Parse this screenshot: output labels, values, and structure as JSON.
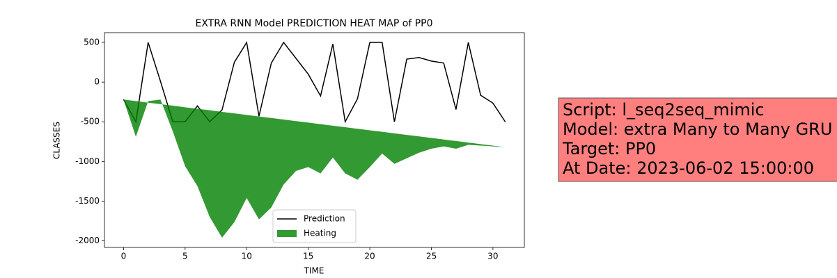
{
  "chart_data": {
    "type": "line",
    "title": "EXTRA RNN Model PREDICTION HEAT MAP of PP0",
    "x_label": "TIME",
    "y_label": "CLASSES",
    "x": [
      0,
      1,
      2,
      3,
      4,
      5,
      6,
      7,
      8,
      9,
      10,
      11,
      12,
      13,
      14,
      15,
      16,
      17,
      18,
      19,
      20,
      21,
      22,
      23,
      24,
      25,
      26,
      27,
      28,
      29,
      30,
      31
    ],
    "series": [
      {
        "name": "Prediction",
        "color": "#000000",
        "values": [
          -219,
          -500,
          500,
          10,
          -500,
          -500,
          -300,
          -500,
          -350,
          250,
          500,
          -430,
          240,
          500,
          300,
          100,
          -175,
          480,
          -500,
          -210,
          500,
          500,
          -500,
          290,
          310,
          265,
          240,
          -345,
          500,
          -165,
          -265,
          -500
        ]
      },
      {
        "name": "Heating",
        "color": "#008000",
        "fill": true,
        "values": [
          -220,
          -690,
          -240,
          -220,
          -620,
          -1060,
          -1310,
          -1700,
          -1960,
          -1765,
          -1460,
          -1730,
          -1580,
          -1290,
          -1120,
          -1070,
          -1150,
          -950,
          -1150,
          -1230,
          -1070,
          -900,
          -1030,
          -960,
          -890,
          -840,
          -810,
          -840,
          -790,
          -800,
          -810,
          -820
        ],
        "baseline": [
          -220,
          -239,
          -259,
          -278,
          -297,
          -317,
          -336,
          -355,
          -375,
          -394,
          -414,
          -433,
          -452,
          -472,
          -491,
          -510,
          -530,
          -549,
          -568,
          -588,
          -607,
          -626,
          -646,
          -665,
          -684,
          -704,
          -723,
          -742,
          -762,
          -781,
          -800,
          -820
        ]
      }
    ],
    "xlim": [
      -1.55,
      32.55
    ],
    "xticks": [
      0,
      5,
      10,
      15,
      20,
      25,
      30
    ],
    "ylim": [
      -2083,
      623
    ],
    "yticks": [
      -2000,
      -1500,
      -1000,
      -500,
      0,
      500
    ],
    "legend": "lower center",
    "annotation": {
      "color": "#ff7f7f",
      "lines": [
        "Script: l_seq2seq_mimic",
        "Model: extra Many to Many GRU",
        "Target: PP0",
        "At Date: 2023-06-02 15:00:00"
      ]
    }
  }
}
